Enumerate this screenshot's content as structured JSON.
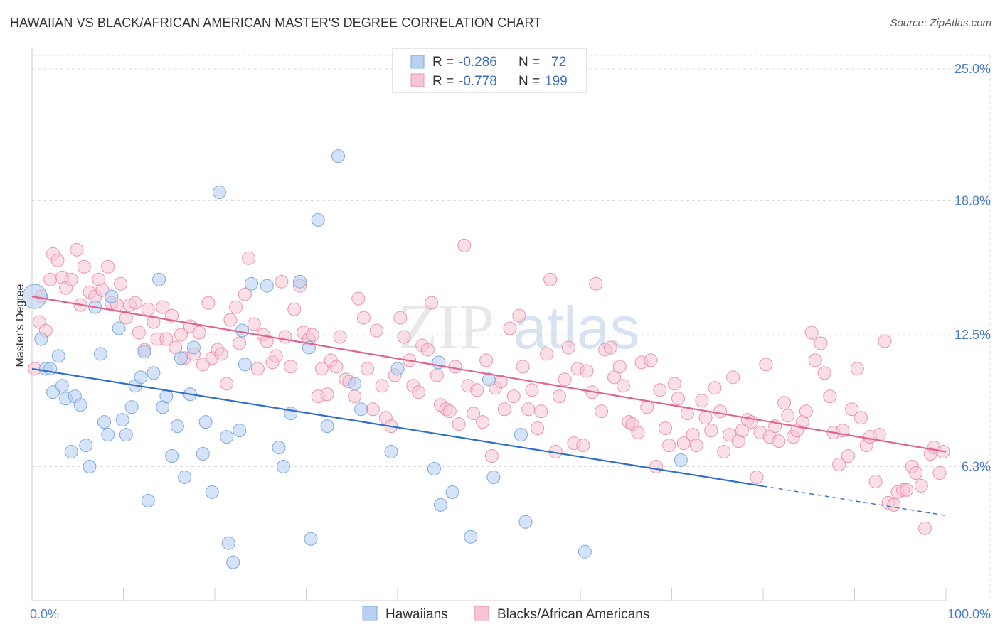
{
  "title": "HAWAIIAN VS BLACK/AFRICAN AMERICAN MASTER'S DEGREE CORRELATION CHART",
  "source": "Source: ZipAtlas.com",
  "watermark": {
    "zip": "ZIP",
    "atlas": "atlas"
  },
  "legend": {
    "r_label": "R =",
    "n_label": "N =",
    "rows": [
      {
        "r": "-0.286",
        "n": "72"
      },
      {
        "r": "-0.778",
        "n": "199"
      }
    ]
  },
  "colors": {
    "blue_fill": "#b8d0f2",
    "blue_stroke": "#7fa8de",
    "blue_line": "#2e6fce",
    "pink_fill": "#f7c4d4",
    "pink_stroke": "#e993b0",
    "pink_line": "#e0628f",
    "tick_text": "#4a7cc9",
    "grid": "#dddddd"
  },
  "chart_data": {
    "type": "scatter",
    "title": "HAWAIIAN VS BLACK/AFRICAN AMERICAN MASTER'S DEGREE CORRELATION CHART",
    "xlabel": "",
    "ylabel": "Master's Degree",
    "xlim": [
      0,
      100
    ],
    "ylim": [
      0,
      25
    ],
    "x_tick_labels": [
      "0.0%",
      "100.0%"
    ],
    "y_ticks": [
      6.3,
      12.5,
      18.8,
      25.0
    ],
    "y_tick_labels": [
      "6.3%",
      "12.5%",
      "18.8%",
      "25.0%"
    ],
    "grid": true,
    "legend_position": "top-center",
    "series": [
      {
        "name": "Hawaiians",
        "r": -0.286,
        "n": 72,
        "trend": {
          "x0": 0,
          "y0": 10.9,
          "x1": 100,
          "y1": 4.0,
          "solid_until": 80
        },
        "points": [
          [
            0.3,
            14.3
          ],
          [
            1,
            12.3
          ],
          [
            1.5,
            10.9
          ],
          [
            2,
            10.9
          ],
          [
            2.3,
            9.8
          ],
          [
            2.9,
            11.5
          ],
          [
            3.3,
            10.1
          ],
          [
            3.7,
            9.5
          ],
          [
            4.3,
            7.0
          ],
          [
            4.7,
            9.6
          ],
          [
            5.3,
            9.2
          ],
          [
            5.9,
            7.3
          ],
          [
            6.3,
            6.3
          ],
          [
            6.9,
            13.8
          ],
          [
            7.5,
            11.6
          ],
          [
            7.9,
            8.4
          ],
          [
            8.3,
            7.8
          ],
          [
            8.7,
            14.3
          ],
          [
            9.5,
            12.8
          ],
          [
            9.9,
            8.5
          ],
          [
            10.3,
            7.8
          ],
          [
            10.9,
            9.1
          ],
          [
            11.3,
            10.1
          ],
          [
            11.9,
            10.5
          ],
          [
            12.3,
            11.7
          ],
          [
            12.7,
            4.7
          ],
          [
            13.3,
            10.7
          ],
          [
            13.9,
            15.1
          ],
          [
            14.3,
            9.1
          ],
          [
            14.7,
            9.6
          ],
          [
            15.3,
            6.8
          ],
          [
            15.9,
            8.2
          ],
          [
            16.3,
            11.4
          ],
          [
            16.7,
            5.8
          ],
          [
            17.3,
            9.7
          ],
          [
            17.7,
            11.9
          ],
          [
            18.7,
            6.9
          ],
          [
            19,
            8.4
          ],
          [
            19.7,
            5.1
          ],
          [
            20.5,
            19.2
          ],
          [
            21.3,
            7.7
          ],
          [
            21.5,
            2.7
          ],
          [
            22,
            1.8
          ],
          [
            22.7,
            8.0
          ],
          [
            23,
            12.7
          ],
          [
            23.3,
            11.1
          ],
          [
            24,
            14.9
          ],
          [
            25.7,
            14.8
          ],
          [
            27,
            7.2
          ],
          [
            27.5,
            6.3
          ],
          [
            28.3,
            8.8
          ],
          [
            29.3,
            15.0
          ],
          [
            30.3,
            11.9
          ],
          [
            30.5,
            2.9
          ],
          [
            31.3,
            17.9
          ],
          [
            32.3,
            8.2
          ],
          [
            33.5,
            20.9
          ],
          [
            35.3,
            10.2
          ],
          [
            36,
            9.0
          ],
          [
            39.3,
            7.0
          ],
          [
            40,
            10.9
          ],
          [
            44,
            6.2
          ],
          [
            44.5,
            11.2
          ],
          [
            44.7,
            4.5
          ],
          [
            46,
            5.1
          ],
          [
            48,
            3.0
          ],
          [
            50,
            10.4
          ],
          [
            50.5,
            5.8
          ],
          [
            53.5,
            7.8
          ],
          [
            54,
            3.7
          ],
          [
            60.5,
            2.3
          ],
          [
            71,
            6.6
          ]
        ]
      },
      {
        "name": "Blacks/African Americans",
        "r": -0.778,
        "n": 199,
        "trend": {
          "x0": 0,
          "y0": 14.3,
          "x1": 100,
          "y1": 7.0
        },
        "points": [
          [
            0.3,
            10.9
          ],
          [
            0.8,
            13.1
          ],
          [
            1,
            14.3
          ],
          [
            1.5,
            12.7
          ],
          [
            2,
            15.1
          ],
          [
            2.3,
            16.3
          ],
          [
            2.8,
            16.0
          ],
          [
            3.3,
            15.2
          ],
          [
            3.7,
            14.7
          ],
          [
            4.3,
            15.1
          ],
          [
            4.9,
            16.5
          ],
          [
            5.3,
            13.9
          ],
          [
            5.7,
            15.7
          ],
          [
            6.3,
            14.5
          ],
          [
            6.9,
            14.3
          ],
          [
            7.3,
            15.1
          ],
          [
            7.7,
            14.6
          ],
          [
            8.3,
            15.7
          ],
          [
            8.7,
            14.0
          ],
          [
            9.3,
            13.9
          ],
          [
            9.7,
            14.9
          ],
          [
            10.3,
            13.3
          ],
          [
            10.7,
            13.9
          ],
          [
            11.3,
            14.0
          ],
          [
            11.7,
            12.6
          ],
          [
            12.3,
            11.8
          ],
          [
            12.7,
            13.7
          ],
          [
            13.3,
            13.1
          ],
          [
            13.7,
            12.3
          ],
          [
            14.3,
            13.8
          ],
          [
            14.7,
            12.3
          ],
          [
            15.3,
            13.4
          ],
          [
            15.7,
            11.9
          ],
          [
            16.3,
            12.5
          ],
          [
            16.7,
            11.4
          ],
          [
            17.3,
            12.9
          ],
          [
            17.7,
            11.6
          ],
          [
            18.3,
            12.6
          ],
          [
            18.7,
            11.1
          ],
          [
            19.3,
            14.0
          ],
          [
            19.7,
            11.4
          ],
          [
            20.3,
            11.8
          ],
          [
            20.7,
            11.6
          ],
          [
            21.3,
            10.2
          ],
          [
            21.7,
            13.2
          ],
          [
            22.3,
            13.8
          ],
          [
            22.7,
            12.1
          ],
          [
            23.3,
            14.4
          ],
          [
            23.7,
            16.1
          ],
          [
            24.3,
            13.0
          ],
          [
            24.7,
            10.9
          ],
          [
            25.3,
            12.5
          ],
          [
            25.7,
            12.2
          ],
          [
            26.3,
            11.2
          ],
          [
            26.7,
            11.5
          ],
          [
            27.3,
            15.0
          ],
          [
            27.7,
            12.4
          ],
          [
            28.3,
            11.0
          ],
          [
            28.7,
            13.7
          ],
          [
            29.3,
            14.8
          ],
          [
            29.7,
            12.6
          ],
          [
            30.3,
            12.3
          ],
          [
            30.7,
            12.5
          ],
          [
            31.3,
            9.6
          ],
          [
            31.7,
            10.9
          ],
          [
            32.3,
            9.7
          ],
          [
            32.7,
            11.3
          ],
          [
            33.3,
            11.0
          ],
          [
            33.7,
            12.4
          ],
          [
            34.3,
            10.4
          ],
          [
            34.7,
            10.3
          ],
          [
            35.3,
            9.6
          ],
          [
            35.7,
            14.2
          ],
          [
            36.3,
            13.3
          ],
          [
            36.7,
            10.9
          ],
          [
            37.3,
            9.0
          ],
          [
            37.7,
            12.7
          ],
          [
            38.3,
            10.1
          ],
          [
            38.7,
            8.6
          ],
          [
            39.3,
            8.2
          ],
          [
            39.7,
            10.6
          ],
          [
            40.3,
            13.3
          ],
          [
            40.7,
            12.4
          ],
          [
            41.3,
            11.3
          ],
          [
            41.7,
            10.1
          ],
          [
            42.3,
            9.8
          ],
          [
            42.7,
            12.0
          ],
          [
            43.3,
            11.8
          ],
          [
            43.7,
            14.0
          ],
          [
            44.3,
            10.6
          ],
          [
            44.7,
            9.2
          ],
          [
            45.3,
            9.0
          ],
          [
            45.7,
            8.9
          ],
          [
            46.3,
            11.0
          ],
          [
            46.7,
            8.3
          ],
          [
            47.3,
            16.7
          ],
          [
            47.7,
            10.1
          ],
          [
            48.3,
            8.8
          ],
          [
            48.7,
            9.9
          ],
          [
            49.3,
            8.4
          ],
          [
            49.7,
            11.3
          ],
          [
            50.3,
            6.8
          ],
          [
            50.7,
            10.0
          ],
          [
            51.3,
            10.3
          ],
          [
            51.7,
            9.0
          ],
          [
            52.3,
            12.8
          ],
          [
            52.7,
            9.6
          ],
          [
            53.3,
            13.4
          ],
          [
            53.7,
            11.0
          ],
          [
            54.3,
            9.0
          ],
          [
            54.7,
            9.9
          ],
          [
            55.3,
            8.1
          ],
          [
            55.7,
            8.9
          ],
          [
            56.3,
            11.6
          ],
          [
            56.7,
            15.1
          ],
          [
            57.3,
            7.0
          ],
          [
            57.7,
            9.6
          ],
          [
            58.3,
            10.4
          ],
          [
            58.7,
            11.9
          ],
          [
            59.3,
            7.4
          ],
          [
            59.7,
            10.9
          ],
          [
            60.3,
            7.3
          ],
          [
            60.7,
            10.8
          ],
          [
            61.3,
            9.8
          ],
          [
            61.7,
            14.9
          ],
          [
            62.3,
            8.9
          ],
          [
            62.7,
            11.8
          ],
          [
            63.3,
            11.9
          ],
          [
            63.7,
            10.5
          ],
          [
            64.3,
            11.0
          ],
          [
            64.7,
            10.1
          ],
          [
            65.3,
            8.4
          ],
          [
            65.7,
            8.3
          ],
          [
            66.3,
            7.9
          ],
          [
            66.7,
            11.2
          ],
          [
            67.3,
            9.1
          ],
          [
            67.7,
            11.3
          ],
          [
            68.3,
            6.3
          ],
          [
            68.7,
            9.9
          ],
          [
            69.3,
            8.1
          ],
          [
            69.7,
            7.3
          ],
          [
            70.3,
            10.2
          ],
          [
            70.7,
            9.5
          ],
          [
            71.3,
            7.4
          ],
          [
            71.7,
            8.8
          ],
          [
            72.3,
            7.8
          ],
          [
            72.7,
            7.3
          ],
          [
            73.3,
            9.4
          ],
          [
            73.7,
            8.6
          ],
          [
            74.3,
            8.0
          ],
          [
            74.7,
            10.0
          ],
          [
            75.3,
            8.9
          ],
          [
            75.7,
            7.0
          ],
          [
            76.3,
            7.8
          ],
          [
            76.7,
            10.5
          ],
          [
            77.3,
            7.5
          ],
          [
            77.7,
            8.0
          ],
          [
            78.3,
            8.5
          ],
          [
            78.7,
            8.4
          ],
          [
            79.3,
            5.8
          ],
          [
            79.7,
            7.9
          ],
          [
            80.3,
            11.1
          ],
          [
            80.7,
            7.7
          ],
          [
            81.3,
            8.2
          ],
          [
            81.7,
            7.5
          ],
          [
            82.3,
            9.3
          ],
          [
            82.7,
            8.7
          ],
          [
            83.3,
            7.7
          ],
          [
            83.7,
            8.0
          ],
          [
            84.3,
            8.4
          ],
          [
            84.7,
            8.9
          ],
          [
            85.3,
            12.6
          ],
          [
            85.7,
            11.3
          ],
          [
            86.3,
            12.1
          ],
          [
            86.7,
            10.7
          ],
          [
            87.3,
            9.6
          ],
          [
            87.7,
            7.9
          ],
          [
            88.3,
            6.4
          ],
          [
            88.7,
            8.0
          ],
          [
            89.3,
            6.8
          ],
          [
            89.7,
            9.0
          ],
          [
            90.3,
            10.9
          ],
          [
            90.7,
            8.6
          ],
          [
            91.3,
            7.3
          ],
          [
            91.7,
            7.7
          ],
          [
            92.3,
            5.6
          ],
          [
            92.7,
            7.8
          ],
          [
            93.3,
            12.2
          ],
          [
            93.7,
            4.6
          ],
          [
            94.3,
            4.5
          ],
          [
            94.7,
            5.1
          ],
          [
            95.3,
            5.2
          ],
          [
            95.7,
            5.2
          ],
          [
            96.3,
            6.3
          ],
          [
            96.7,
            6.0
          ],
          [
            97.3,
            5.4
          ],
          [
            97.7,
            3.4
          ],
          [
            98.3,
            6.9
          ],
          [
            98.7,
            7.2
          ],
          [
            99.3,
            6.0
          ],
          [
            99.7,
            7.0
          ]
        ]
      }
    ]
  },
  "bottom_legend": [
    "Hawaiians",
    "Blacks/African Americans"
  ]
}
